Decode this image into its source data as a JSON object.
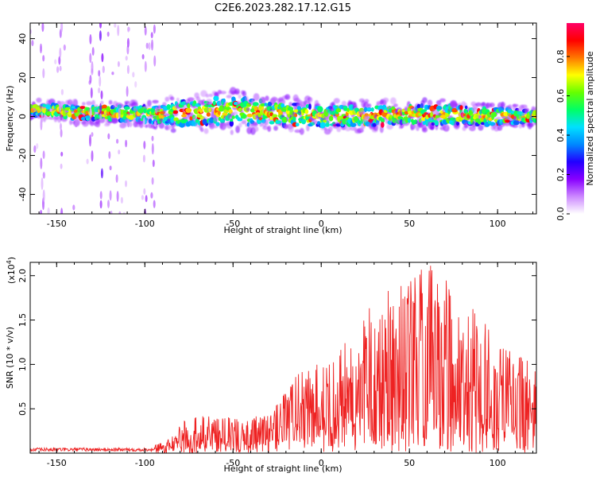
{
  "title": "C2E6.2023.282.17.12.G15",
  "colors": {
    "snr_line": "#ee2222",
    "colormap": [
      "#ffffff",
      "#cc88ff",
      "#8800ff",
      "#2200ff",
      "#0088ff",
      "#00e0ff",
      "#00ff66",
      "#66ff00",
      "#ffff00",
      "#ff7700",
      "#ff0000",
      "#ff0066"
    ]
  },
  "chart_data": [
    {
      "type": "heatmap",
      "xlabel": "Height of straight line (km)",
      "ylabel": "Frequency (Hz)",
      "xlim": [
        -165,
        122
      ],
      "ylim": [
        -50,
        48
      ],
      "xticks": [
        -150,
        -100,
        -50,
        0,
        50,
        100
      ],
      "xtick_labels": [
        "-150",
        "-100",
        "-50",
        "0",
        "50",
        "100"
      ],
      "yticks": [
        -40,
        -20,
        0,
        20,
        40
      ],
      "ytick_labels": [
        "-40",
        "-20",
        "0",
        "20",
        "40"
      ],
      "colorbar": {
        "label": "Normalized spectral amplitude",
        "range": [
          0,
          0.97
        ],
        "ticks": [
          0.0,
          0.2,
          0.4,
          0.6,
          0.8
        ],
        "tick_labels": [
          "0.0",
          "0.2",
          "0.4",
          "0.6",
          "0.8"
        ]
      },
      "ridge": {
        "description_values": "Dominant spectral energy centered near 0-5 Hz across the full height range",
        "center_hz": [
          [
            -165,
            4
          ],
          [
            -140,
            2
          ],
          [
            -100,
            1
          ],
          [
            -50,
            3
          ],
          [
            -35,
            2
          ],
          [
            0,
            0
          ],
          [
            50,
            1
          ],
          [
            100,
            0
          ],
          [
            120,
            0
          ]
        ],
        "half_width_hz": [
          [
            -165,
            3
          ],
          [
            -100,
            4
          ],
          [
            -80,
            6
          ],
          [
            -50,
            7
          ],
          [
            -30,
            6
          ],
          [
            0,
            5
          ],
          [
            60,
            5
          ],
          [
            100,
            4
          ],
          [
            120,
            3
          ]
        ]
      },
      "vertical_streaks_km": [
        -158,
        -148,
        -130,
        -125,
        -120,
        -115,
        -110,
        -100,
        -95
      ]
    },
    {
      "type": "line",
      "xlabel": "Height of straight line (km)",
      "ylabel": "SNR (10 * v/v)",
      "yscale_label": "(x10^4)",
      "xlim": [
        -165,
        122
      ],
      "ylim": [
        0,
        2.15
      ],
      "xticks": [
        -150,
        -100,
        -50,
        0,
        50,
        100
      ],
      "xtick_labels": [
        "-150",
        "-100",
        "-50",
        "0",
        "50",
        "100"
      ],
      "yticks": [
        0.5,
        1.0,
        1.5,
        2.0
      ],
      "ytick_labels": [
        "0.5",
        "1.0",
        "1.5",
        "2.0"
      ],
      "envelope": {
        "x": [
          -165,
          -100,
          -90,
          -80,
          -70,
          -60,
          -50,
          -40,
          -30,
          -20,
          -10,
          0,
          10,
          20,
          30,
          40,
          50,
          60,
          70,
          80,
          90,
          100,
          110,
          120
        ],
        "y": [
          0.05,
          0.06,
          0.12,
          0.35,
          0.45,
          0.42,
          0.4,
          0.4,
          0.45,
          0.7,
          1.05,
          1.0,
          1.25,
          1.45,
          1.75,
          1.85,
          2.0,
          2.15,
          2.0,
          1.7,
          1.6,
          1.2,
          1.2,
          1.0
        ]
      }
    }
  ]
}
